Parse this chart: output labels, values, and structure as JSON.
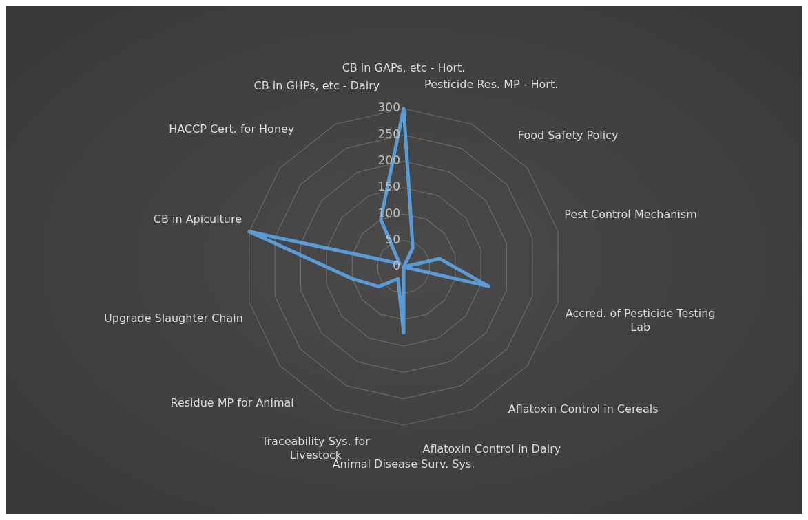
{
  "chart_data": {
    "type": "radar",
    "categories": [
      "CB in GAPs, etc - Hort.",
      "Pesticide Res. MP - Hort.",
      "Food Safety Policy",
      "Pest Control Mechanism",
      "Accred. of Pesticide Testing Lab",
      "Aflatoxin Control in Cereals",
      "Aflatoxin Control in Dairy",
      "Animal Disease Surv. Sys.",
      "Traceability Sys. for Livestock",
      "Residue MP for Animal",
      "Upgrade Slaughter Chain",
      "CB in Apiculture",
      "HACCP Cert. for Honey",
      "CB in GHPs, etc - Dairy"
    ],
    "series": [
      {
        "color": "#5b9bd5",
        "values": [
          300,
          40,
          0,
          70,
          165,
          0,
          0,
          125,
          25,
          60,
          100,
          300,
          10,
          100
        ]
      }
    ],
    "ylim": [
      0,
      300
    ],
    "yticks": [
      0,
      50,
      100,
      150,
      200,
      250,
      300
    ],
    "grid": true,
    "legend": false,
    "marker": "none",
    "line_style": "solid"
  }
}
